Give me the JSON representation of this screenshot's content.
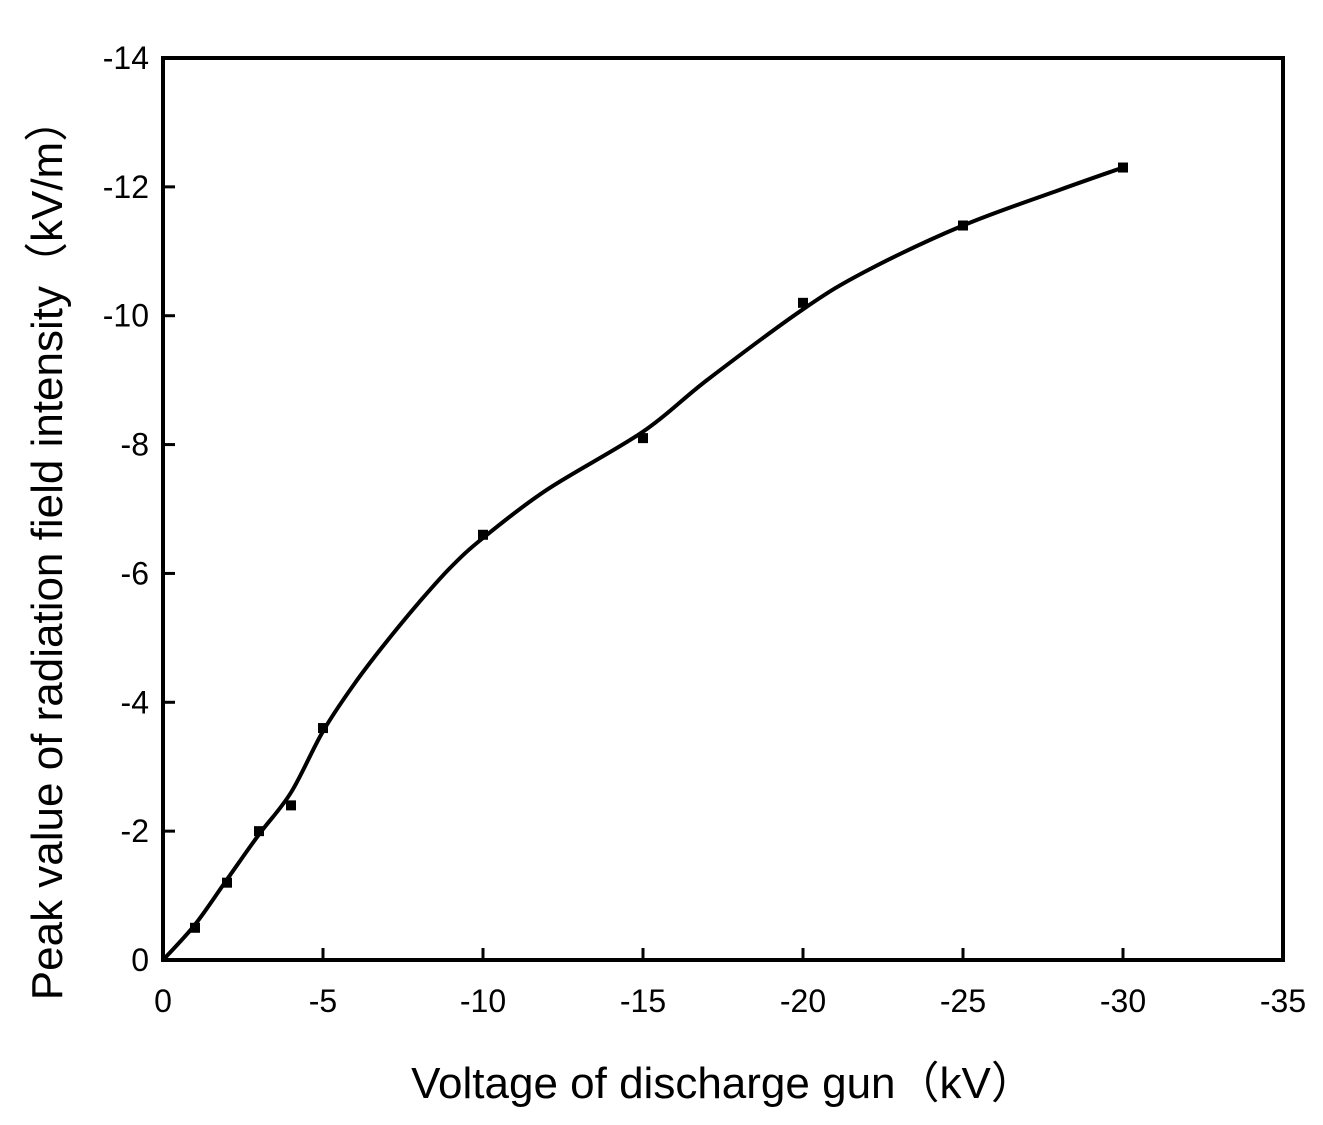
{
  "chart_data": {
    "type": "scatter",
    "xlabel": "Voltage of discharge gun（kV）",
    "ylabel": "Peak value of radiation field intensity（kV/m）",
    "xlim": [
      0,
      -35
    ],
    "ylim": [
      0,
      -14
    ],
    "x_ticks": [
      0,
      -5,
      -10,
      -15,
      -20,
      -25,
      -30,
      -35
    ],
    "y_ticks": [
      0,
      -2,
      -4,
      -6,
      -8,
      -10,
      -12,
      -14
    ],
    "x_tick_labels": [
      "0",
      "-5",
      "-10",
      "-15",
      "-20",
      "-25",
      "-30",
      "-35"
    ],
    "y_tick_labels": [
      "0",
      "-2",
      "-4",
      "-6",
      "-8",
      "-10",
      "-12",
      "-14"
    ],
    "grid": false,
    "legend": "none",
    "series": [
      {
        "marker": "square",
        "x": [
          -1,
          -2,
          -3,
          -4,
          -5,
          -10,
          -15,
          -20,
          -25,
          -30
        ],
        "y": [
          -0.5,
          -1.2,
          -2.0,
          -2.4,
          -3.6,
          -6.6,
          -8.1,
          -10.2,
          -11.4,
          -12.3
        ]
      },
      {
        "type": "line",
        "style": "smooth",
        "x": [
          0,
          -1,
          -2,
          -3,
          -4,
          -5,
          -6,
          -7,
          -8,
          -9,
          -10,
          -12,
          -15,
          -17,
          -20,
          -22,
          -25,
          -28,
          -30
        ],
        "y": [
          0,
          -0.55,
          -1.25,
          -1.95,
          -2.6,
          -3.55,
          -4.3,
          -4.95,
          -5.55,
          -6.1,
          -6.55,
          -7.3,
          -8.2,
          -9.0,
          -10.1,
          -10.7,
          -11.4,
          -11.95,
          -12.3
        ]
      }
    ],
    "colors": {
      "marks": "#000000",
      "background": "#ffffff"
    }
  }
}
